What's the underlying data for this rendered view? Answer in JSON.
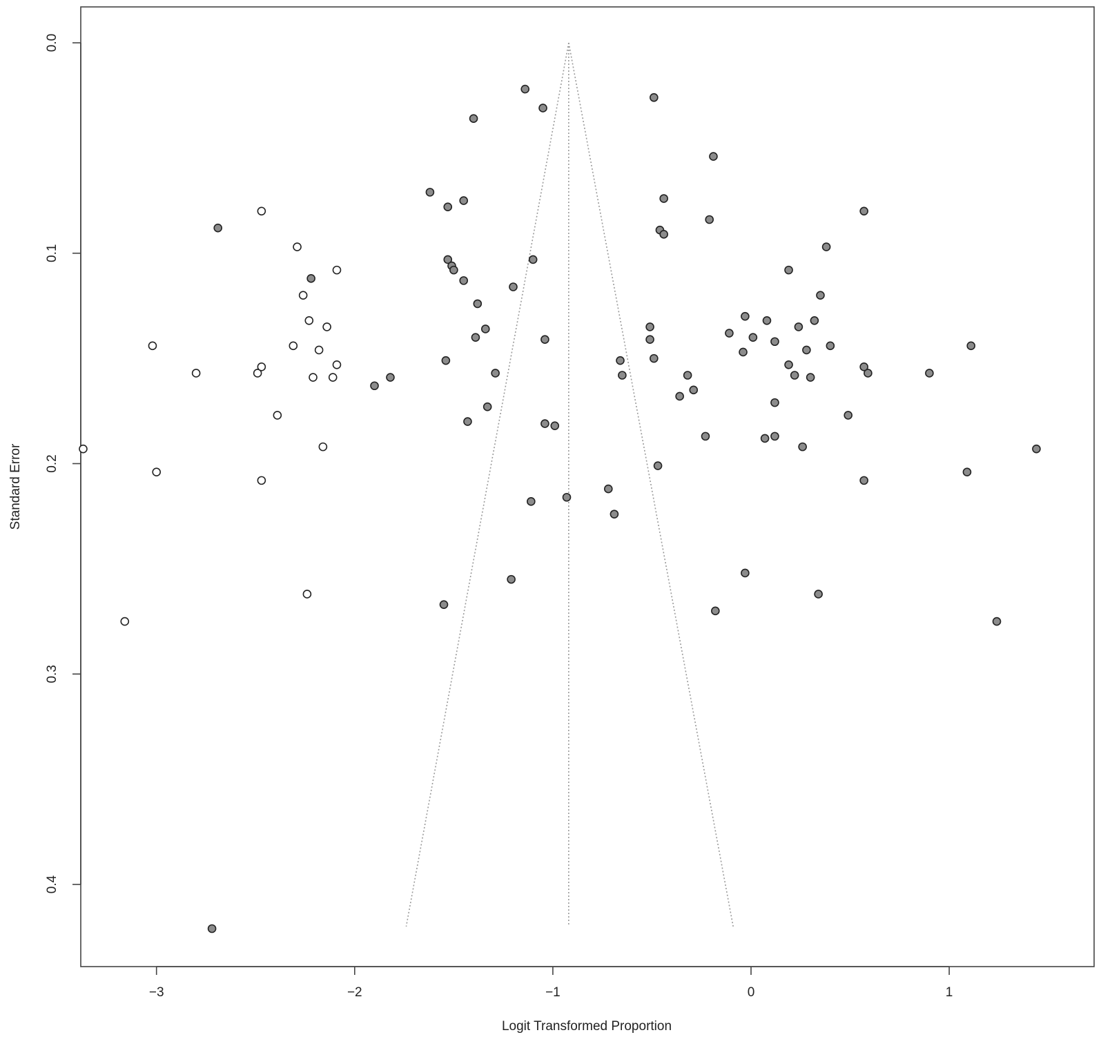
{
  "chart_data": {
    "type": "scatter",
    "xlabel": "Logit Transformed Proportion",
    "ylabel": "Standard Error",
    "xlim": [
      -3.45,
      1.65
    ],
    "ylim": [
      0.0,
      0.438
    ],
    "y_inverted": true,
    "x_ticks": [
      -3,
      -2,
      -1,
      0,
      1
    ],
    "x_tick_labels": [
      "−3",
      "−2",
      "−1",
      "0",
      "1"
    ],
    "y_ticks": [
      0.0,
      0.1,
      0.2,
      0.3,
      0.4
    ],
    "y_tick_labels": [
      "0.0",
      "0.1",
      "0.2",
      "0.3",
      "0.4"
    ],
    "grid": false,
    "funnel": {
      "center": -0.92,
      "apex_se": 0.0,
      "base_se": 0.42,
      "left_at_base": -1.74,
      "right_at_base": -0.09
    },
    "colors": {
      "observed_fill": "#8c8c8c",
      "imputed_fill": "#ffffff",
      "marker_stroke": "#222222",
      "funnel_line": "#9a9a9a",
      "axis": "#444444"
    },
    "series": [
      {
        "fill": "#8c8c8c",
        "x": [
          -1.14,
          -1.05,
          -1.4,
          -1.62,
          -1.53,
          -1.45,
          -1.1,
          -1.53,
          -1.51,
          -1.5,
          -1.45,
          -1.38,
          -1.34,
          -1.39,
          -1.04,
          -1.29,
          -1.54,
          -1.9,
          -1.82,
          -1.33,
          -1.43,
          -1.04,
          -0.99,
          -1.2,
          -1.11,
          -0.93,
          -0.72,
          -0.69,
          -0.66,
          -0.65,
          -1.21,
          -1.55,
          -2.69,
          -2.72,
          -2.22,
          -0.49,
          -0.19,
          -0.44,
          -0.21,
          -0.46,
          -0.44,
          -0.51,
          -0.51,
          -0.49,
          -0.32,
          -0.29,
          -0.36,
          -0.23,
          -0.47,
          -0.18,
          -0.03,
          -0.11,
          -0.04,
          0.01,
          0.08,
          0.12,
          0.19,
          0.22,
          0.12,
          0.07,
          0.12,
          0.26,
          0.24,
          0.28,
          0.3,
          0.32,
          0.35,
          0.38,
          0.4,
          0.19,
          0.49,
          0.57,
          0.59,
          0.57,
          0.57,
          0.9,
          1.11,
          1.09,
          1.44,
          -0.03,
          0.34,
          1.24
        ],
        "y": [
          0.022,
          0.031,
          0.036,
          0.071,
          0.078,
          0.075,
          0.103,
          0.103,
          0.106,
          0.108,
          0.113,
          0.124,
          0.136,
          0.14,
          0.141,
          0.157,
          0.151,
          0.163,
          0.159,
          0.173,
          0.18,
          0.181,
          0.182,
          0.116,
          0.218,
          0.216,
          0.212,
          0.224,
          0.151,
          0.158,
          0.255,
          0.267,
          0.088,
          0.421,
          0.112,
          0.026,
          0.054,
          0.074,
          0.084,
          0.089,
          0.091,
          0.135,
          0.141,
          0.15,
          0.158,
          0.165,
          0.168,
          0.187,
          0.201,
          0.27,
          0.13,
          0.138,
          0.147,
          0.14,
          0.132,
          0.142,
          0.108,
          0.158,
          0.171,
          0.188,
          0.187,
          0.192,
          0.135,
          0.146,
          0.159,
          0.132,
          0.12,
          0.097,
          0.144,
          0.153,
          0.177,
          0.08,
          0.157,
          0.154,
          0.208,
          0.157,
          0.144,
          0.204,
          0.193,
          0.252,
          0.262,
          0.275
        ]
      },
      {
        "fill": "#ffffff",
        "x": [
          -2.47,
          -2.29,
          -2.09,
          -2.26,
          -2.23,
          -2.14,
          -2.31,
          -2.18,
          -3.02,
          -2.8,
          -2.49,
          -2.47,
          -2.21,
          -2.11,
          -2.09,
          -2.39,
          -2.16,
          -3.37,
          -3.0,
          -2.47,
          -2.24,
          -3.16
        ],
        "y": [
          0.08,
          0.097,
          0.108,
          0.12,
          0.132,
          0.135,
          0.144,
          0.146,
          0.144,
          0.157,
          0.157,
          0.154,
          0.159,
          0.159,
          0.153,
          0.177,
          0.192,
          0.193,
          0.204,
          0.208,
          0.262,
          0.275
        ]
      }
    ]
  }
}
